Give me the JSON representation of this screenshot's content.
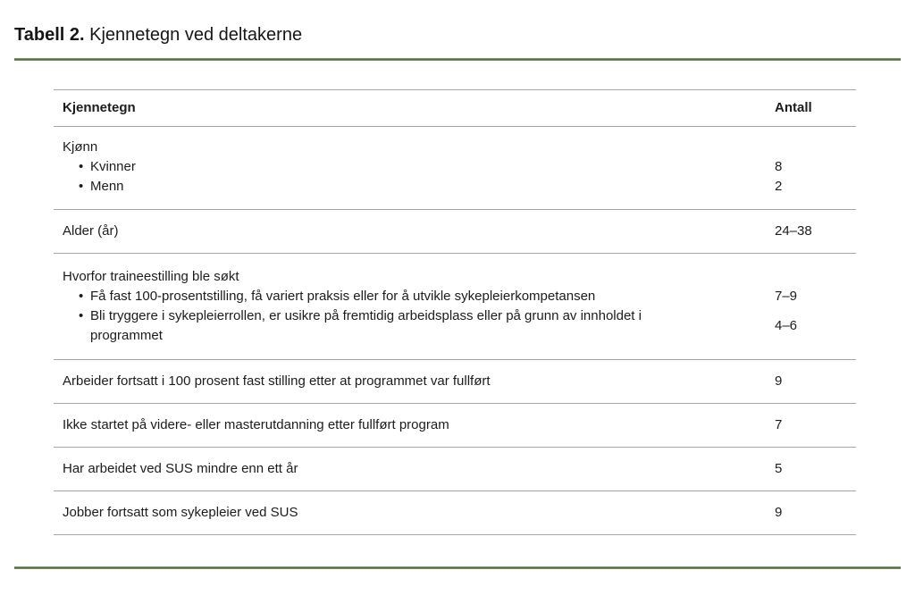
{
  "title": {
    "prefix": "Tabell 2.",
    "text": " Kjennetegn ved deltakerne"
  },
  "table": {
    "header": {
      "col1": "Kjennetegn",
      "col2": "Antall"
    },
    "rows": [
      {
        "type": "group",
        "label": "Kjønn",
        "items": [
          {
            "text": "Kvinner",
            "value": "8"
          },
          {
            "text": "Menn",
            "value": "2"
          }
        ]
      },
      {
        "type": "simple",
        "label": "Alder (år)",
        "value": "24–38"
      },
      {
        "type": "group",
        "label": "Hvorfor traineestilling ble søkt",
        "items": [
          {
            "text": "Få fast 100-prosentstilling, få variert praksis eller for å utvikle sykepleierkompetansen",
            "value": "7–9"
          },
          {
            "text": "Bli tryggere i sykepleierrollen, er usikre på fremtidig arbeidsplass eller på grunn av innholdet i programmet",
            "value": "4–6"
          }
        ]
      },
      {
        "type": "simple",
        "label": "Arbeider fortsatt i 100 prosent fast stilling etter at programmet var fullført",
        "value": "9"
      },
      {
        "type": "simple",
        "label": "Ikke startet på videre- eller masterutdanning etter fullført program",
        "value": "7"
      },
      {
        "type": "simple",
        "label": "Har arbeidet ved SUS mindre enn ett år",
        "value": "5"
      },
      {
        "type": "simple",
        "label": "Jobber fortsatt som sykepleier ved SUS",
        "value": "9"
      }
    ]
  },
  "colors": {
    "accent_green": "#50703a",
    "divider_gray": "#a6a6a6",
    "text": "#1c1c1c"
  }
}
